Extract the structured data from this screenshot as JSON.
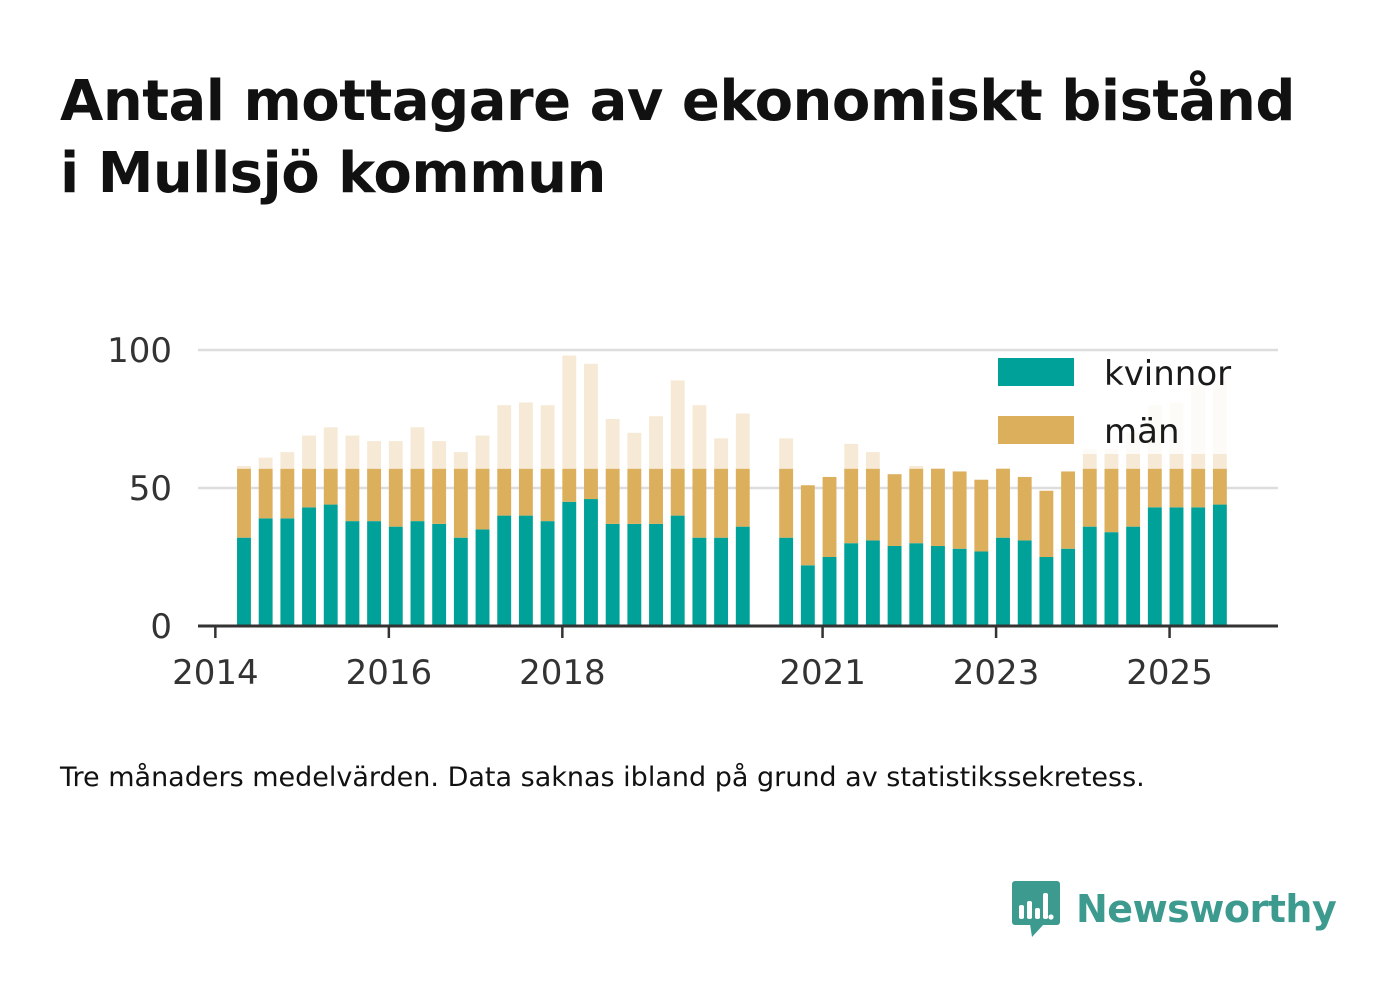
{
  "title_lines": [
    "Antal mottagare av ekonomiskt bistånd",
    "i Mullsjö kommun"
  ],
  "note": "Tre månaders medelvärden. Data saknas ibland på grund av statistikssekretess.",
  "brand": {
    "name": "Newsworthy",
    "icon": "newsworthy-logo-icon",
    "color": "#3d9a8f"
  },
  "chart_data": {
    "type": "bar",
    "stacked": true,
    "title": "",
    "xlabel": "",
    "ylabel": "",
    "ylim": [
      0,
      100
    ],
    "yticks": [
      0,
      50,
      100
    ],
    "xlim": [
      2013.8,
      2026.25
    ],
    "xticks": [
      {
        "value": 2014,
        "label": "2014"
      },
      {
        "value": 2016,
        "label": "2016"
      },
      {
        "value": 2018,
        "label": "2018"
      },
      {
        "value": 2021,
        "label": "2021"
      },
      {
        "value": 2023,
        "label": "2023"
      },
      {
        "value": 2025,
        "label": "2025"
      }
    ],
    "grid": true,
    "legend_position": "top-right",
    "bar_width": 0.16,
    "colors": {
      "kvinnor": "#00a199",
      "man": "#dcaf5c",
      "man_faded": "#f6ead6"
    },
    "series": [
      {
        "name": "kvinnor",
        "color": "#00a199"
      },
      {
        "name": "män",
        "color": "#dcaf5c"
      }
    ],
    "x": [
      2014.33,
      2014.58,
      2014.83,
      2015.08,
      2015.33,
      2015.58,
      2015.83,
      2016.08,
      2016.33,
      2016.58,
      2016.83,
      2017.08,
      2017.33,
      2017.58,
      2017.83,
      2018.08,
      2018.33,
      2018.58,
      2018.83,
      2019.08,
      2019.33,
      2019.58,
      2019.83,
      2020.08,
      2020.58,
      2020.83,
      2021.08,
      2021.33,
      2021.58,
      2021.83,
      2022.08,
      2022.33,
      2022.58,
      2022.83,
      2023.08,
      2023.33,
      2023.58,
      2023.83,
      2024.08,
      2024.33,
      2024.58,
      2024.83,
      2025.08,
      2025.33,
      2025.58
    ],
    "kvinnor": [
      32,
      39,
      39,
      43,
      44,
      38,
      38,
      36,
      38,
      37,
      32,
      35,
      40,
      40,
      38,
      45,
      46,
      37,
      37,
      37,
      40,
      32,
      32,
      36,
      32,
      22,
      25,
      30,
      31,
      29,
      30,
      29,
      28,
      27,
      32,
      31,
      25,
      28,
      36,
      34,
      36,
      43,
      43,
      43,
      44
    ],
    "man": [
      26,
      22,
      24,
      26,
      28,
      31,
      29,
      31,
      34,
      30,
      31,
      34,
      40,
      41,
      42,
      53,
      49,
      38,
      33,
      39,
      49,
      48,
      36,
      41,
      36,
      29,
      29,
      36,
      32,
      26,
      28,
      28,
      28,
      26,
      25,
      23,
      24,
      28,
      28,
      30,
      34,
      37,
      38,
      44,
      45
    ],
    "man_faded_from": 57
  }
}
